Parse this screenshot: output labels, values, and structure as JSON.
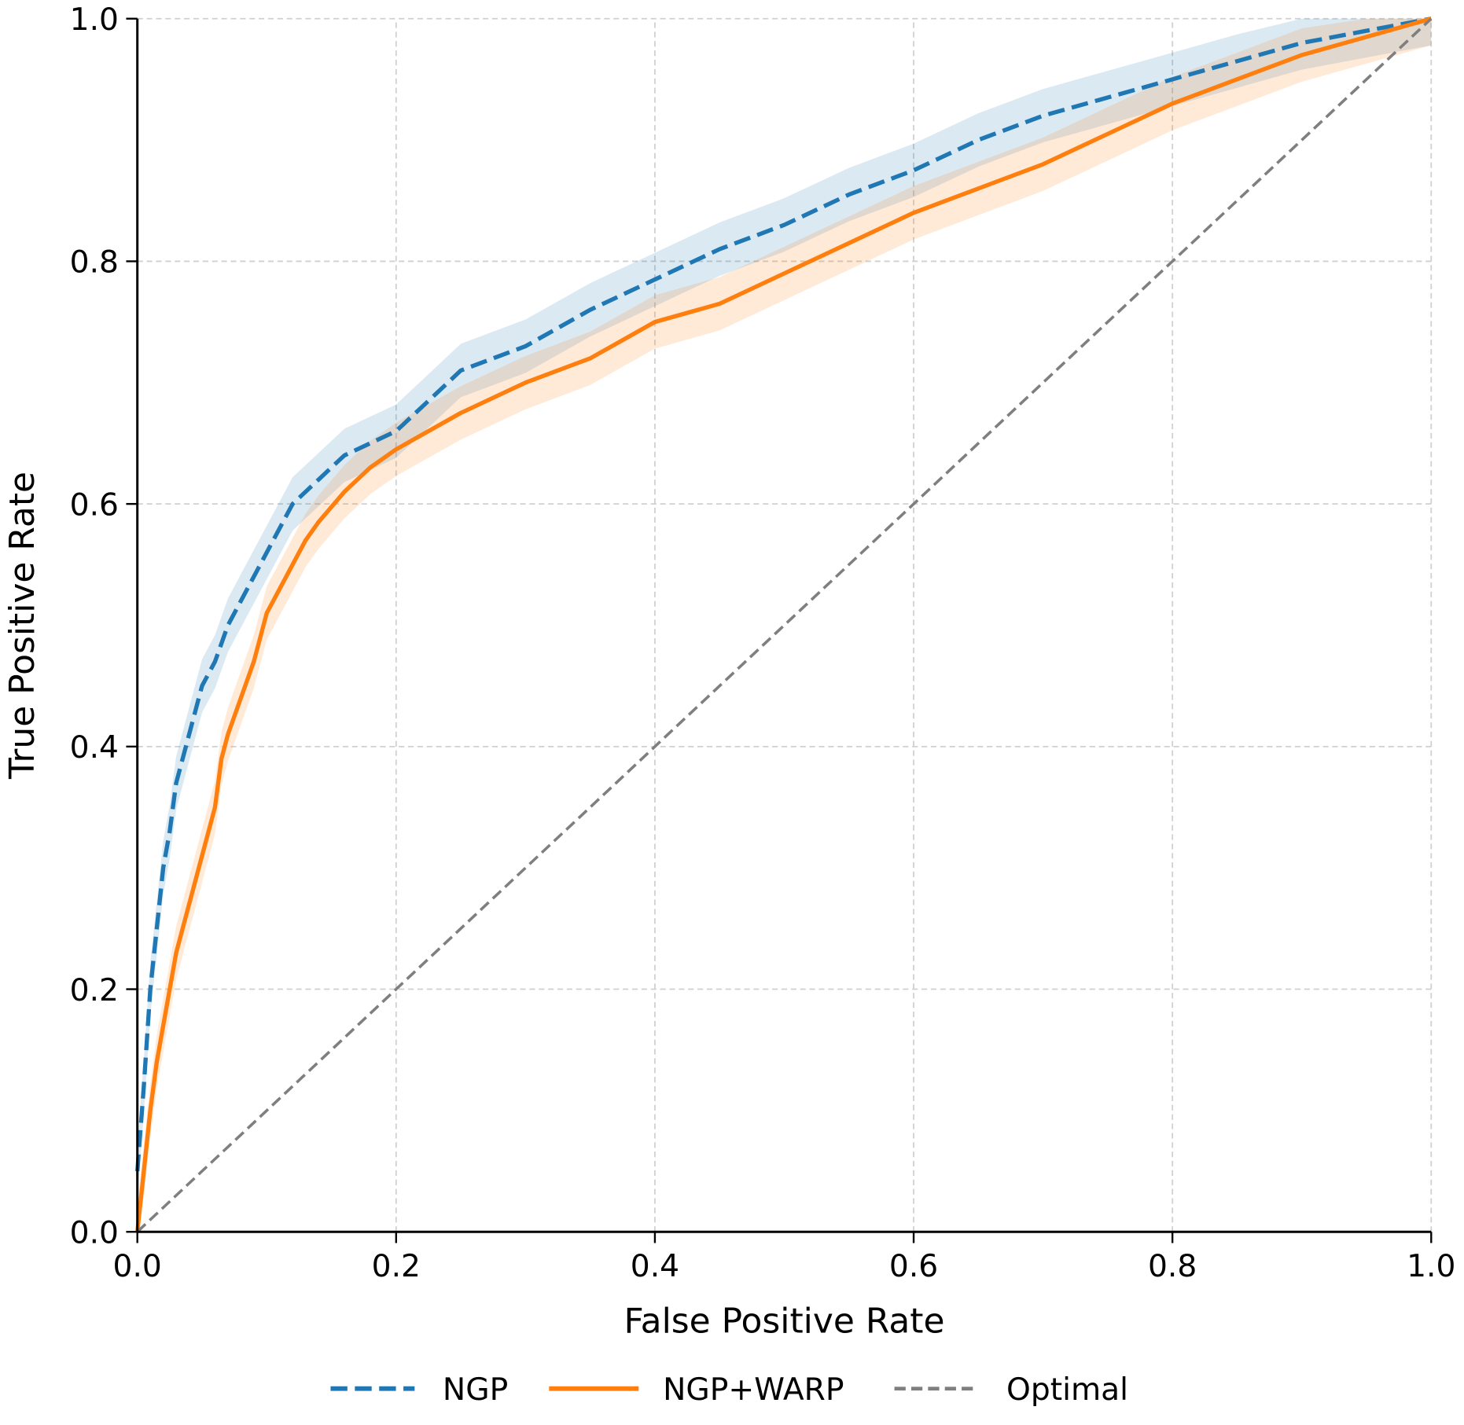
{
  "chart_data": {
    "type": "line",
    "xlabel": "False Positive Rate",
    "ylabel": "True Positive Rate",
    "xlim": [
      0,
      1
    ],
    "ylim": [
      0,
      1
    ],
    "xticks": [
      "0.0",
      "0.2",
      "0.4",
      "0.6",
      "0.8",
      "1.0"
    ],
    "yticks": [
      "0.0",
      "0.2",
      "0.4",
      "0.6",
      "0.8",
      "1.0"
    ],
    "grid": true,
    "legend_placement": "bottom",
    "series": [
      {
        "name": "NGP",
        "color": "#1f77b4",
        "style": "dashed",
        "ci_halfwidth": 0.022,
        "x": [
          0,
          0.005,
          0.01,
          0.015,
          0.02,
          0.025,
          0.03,
          0.035,
          0.04,
          0.05,
          0.06,
          0.07,
          0.08,
          0.09,
          0.1,
          0.11,
          0.12,
          0.14,
          0.16,
          0.2,
          0.22,
          0.25,
          0.3,
          0.35,
          0.4,
          0.45,
          0.5,
          0.55,
          0.6,
          0.62,
          0.65,
          0.7,
          0.75,
          0.8,
          0.85,
          0.9,
          0.95,
          1
        ],
        "y": [
          0.05,
          0.12,
          0.2,
          0.25,
          0.3,
          0.33,
          0.37,
          0.39,
          0.41,
          0.45,
          0.47,
          0.5,
          0.52,
          0.54,
          0.56,
          0.58,
          0.6,
          0.62,
          0.64,
          0.66,
          0.68,
          0.71,
          0.73,
          0.76,
          0.785,
          0.81,
          0.83,
          0.855,
          0.875,
          0.885,
          0.9,
          0.92,
          0.935,
          0.95,
          0.965,
          0.98,
          0.99,
          1
        ]
      },
      {
        "name": "NGP+WARP",
        "color": "#ff7f0e",
        "style": "solid",
        "ci_halfwidth": 0.022,
        "x": [
          0,
          0.005,
          0.01,
          0.015,
          0.02,
          0.025,
          0.03,
          0.04,
          0.05,
          0.06,
          0.065,
          0.07,
          0.08,
          0.09,
          0.1,
          0.11,
          0.12,
          0.13,
          0.14,
          0.16,
          0.18,
          0.2,
          0.25,
          0.3,
          0.35,
          0.4,
          0.45,
          0.5,
          0.55,
          0.6,
          0.65,
          0.7,
          0.75,
          0.8,
          0.85,
          0.9,
          0.95,
          1
        ],
        "y": [
          0,
          0.05,
          0.1,
          0.14,
          0.17,
          0.2,
          0.23,
          0.27,
          0.31,
          0.35,
          0.39,
          0.41,
          0.44,
          0.47,
          0.51,
          0.53,
          0.55,
          0.57,
          0.585,
          0.61,
          0.63,
          0.645,
          0.675,
          0.7,
          0.72,
          0.75,
          0.765,
          0.79,
          0.815,
          0.84,
          0.86,
          0.88,
          0.905,
          0.93,
          0.95,
          0.97,
          0.985,
          1
        ]
      },
      {
        "name": "Optimal",
        "color": "#7f7f7f",
        "style": "dashed",
        "x": [
          0,
          1
        ],
        "y": [
          0,
          1
        ]
      }
    ]
  }
}
